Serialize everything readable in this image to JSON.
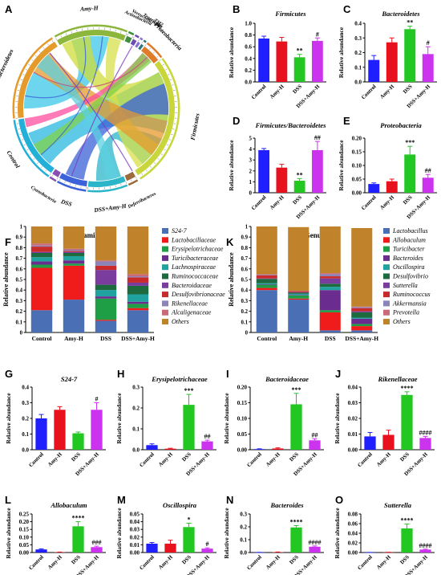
{
  "colors": {
    "Control": "#1f1fff",
    "Amy-H": "#e8121f",
    "DSS": "#22c722",
    "DSS+Amy-H": "#cc33ee"
  },
  "chord": {
    "letter": "A",
    "segments": [
      {
        "label": "Amy-H",
        "color": "#8db63c"
      },
      {
        "label": "Actinobacteria",
        "color": "#3f8c3f"
      },
      {
        "label": "Verrucomicrobia",
        "color": "#6a4fb0"
      },
      {
        "label": "Tenericutes",
        "color": "#8a6fd8"
      },
      {
        "label": "TM7",
        "color": "#2a7a7a"
      },
      {
        "label": "Proteobacteria",
        "color": "#e07b2a"
      },
      {
        "label": "Firmicutes",
        "color": "#c8d63c"
      },
      {
        "label": "Deferribacteres",
        "color": "#9c6b3c"
      },
      {
        "label": "DSS+Amy-H",
        "color": "#2bb5c9"
      },
      {
        "label": "DSS",
        "color": "#3b62d8"
      },
      {
        "label": "Cyanobacteria",
        "color": "#8a4fb3"
      },
      {
        "label": "Control",
        "color": "#22b0d8"
      },
      {
        "label": "Bacteroidetes",
        "color": "#e59a2c"
      }
    ]
  },
  "chart_data": [
    {
      "type": "bar",
      "letter": "B",
      "title": "Firmicutes",
      "ylabel": "Relative abundance",
      "categories": [
        "Control",
        "Amy-H",
        "DSS",
        "DSS+Amy-H"
      ],
      "values": [
        0.74,
        0.69,
        0.42,
        0.7
      ],
      "errors": [
        0.04,
        0.07,
        0.05,
        0.05
      ],
      "sig": [
        "",
        "",
        "**",
        "#"
      ],
      "ylim": [
        0,
        1.0
      ],
      "yticks": [
        "0.0",
        "0.2",
        "0.4",
        "0.6",
        "0.8",
        "1.0"
      ]
    },
    {
      "type": "bar",
      "letter": "C",
      "title": "Bacteroidetes",
      "ylabel": "Relative abundance",
      "categories": [
        "Control",
        "Amy-H",
        "DSS",
        "DSS+Amy-H"
      ],
      "values": [
        0.15,
        0.27,
        0.36,
        0.19
      ],
      "errors": [
        0.03,
        0.03,
        0.02,
        0.05
      ],
      "sig": [
        "",
        "",
        "**",
        "#"
      ],
      "ylim": [
        0,
        0.4
      ],
      "yticks": [
        "0.0",
        "0.1",
        "0.2",
        "0.3",
        "0.4"
      ]
    },
    {
      "type": "bar",
      "letter": "D",
      "title": "Firmicutes/Bacteroidetes",
      "ylabel": "Relative abundance",
      "categories": [
        "Control",
        "Amy-H",
        "DSS",
        "DSS+Amy-H"
      ],
      "values": [
        3.9,
        2.3,
        1.1,
        3.9
      ],
      "errors": [
        0.15,
        0.3,
        0.2,
        0.8
      ],
      "sig": [
        "",
        "",
        "**",
        "##"
      ],
      "ylim": [
        0,
        5
      ],
      "yticks": [
        "0",
        "1",
        "2",
        "3",
        "4",
        "5"
      ]
    },
    {
      "type": "bar",
      "letter": "E",
      "title": "Proteobacteria",
      "ylabel": "Relative abundance",
      "categories": [
        "Control",
        "Amy-H",
        "DSS",
        "DSS+Amy-H"
      ],
      "values": [
        0.032,
        0.042,
        0.14,
        0.055
      ],
      "errors": [
        0.004,
        0.008,
        0.03,
        0.012
      ],
      "sig": [
        "",
        "",
        "***",
        "##"
      ],
      "ylim": [
        0,
        0.2
      ],
      "yticks": [
        "0.00",
        "0.05",
        "0.10",
        "0.15",
        "0.20"
      ]
    },
    {
      "type": "stacked-bar",
      "letter": "F",
      "title": "Family",
      "ylabel": "Relative abundance",
      "categories": [
        "Control",
        "Amy-H",
        "DSS",
        "DSS+Amy-H"
      ],
      "ylim": [
        0,
        1
      ],
      "yticks": [
        "0",
        "0.1",
        "0.2",
        "0.3",
        "0.4",
        "0.5",
        "0.6",
        "0.7",
        "0.8",
        "0.9",
        "1"
      ],
      "series": [
        {
          "name": "S24-7",
          "color": "#4a6fb5",
          "values": [
            0.21,
            0.31,
            0.11,
            0.21
          ]
        },
        {
          "name": "Lactobacillaceae",
          "color": "#f01c1c",
          "values": [
            0.4,
            0.32,
            0.01,
            0.02
          ]
        },
        {
          "name": "Erysipelotrichaceae",
          "color": "#1e9e45",
          "values": [
            0.03,
            0.02,
            0.2,
            0.04
          ]
        },
        {
          "name": "Turicibacteraceae",
          "color": "#6a2c8e",
          "values": [
            0.03,
            0.03,
            0.02,
            0.02
          ]
        },
        {
          "name": "Lachnospiraceae",
          "color": "#1fa2a0",
          "values": [
            0.04,
            0.04,
            0.06,
            0.07
          ]
        },
        {
          "name": "Ruminococcaceae",
          "color": "#1e6a3f",
          "values": [
            0.04,
            0.03,
            0.05,
            0.08
          ]
        },
        {
          "name": "Bacteroidaceae",
          "color": "#7a3d9e",
          "values": [
            0.01,
            0.01,
            0.14,
            0.03
          ]
        },
        {
          "name": "Desulfovibrionaceae",
          "color": "#c92a2a",
          "values": [
            0.05,
            0.01,
            0.04,
            0.05
          ]
        },
        {
          "name": "Rikenellaceae",
          "color": "#8a84b8",
          "values": [
            0.01,
            0.01,
            0.04,
            0.01
          ]
        },
        {
          "name": "Alcaligenaceae",
          "color": "#c86a78",
          "values": [
            0.02,
            0.01,
            0.01,
            0.02
          ]
        },
        {
          "name": "Others",
          "color": "#c0822a",
          "values": [
            0.16,
            0.21,
            0.32,
            0.45
          ]
        }
      ]
    },
    {
      "type": "stacked-bar",
      "letter": "K",
      "title": "Genus",
      "ylabel": "Relative abundance",
      "categories": [
        "Control",
        "Amy-H",
        "DSS",
        "DSS+Amy-H"
      ],
      "ylim": [
        0,
        1
      ],
      "yticks": [
        "0",
        "0.1",
        "0.2",
        "0.3",
        "0.4",
        "0.5",
        "0.6",
        "0.7",
        "0.8",
        "0.9",
        "1"
      ],
      "series": [
        {
          "name": "Lactobacillus",
          "color": "#4a6fb5",
          "values": [
            0.4,
            0.31,
            0.02,
            0.02
          ]
        },
        {
          "name": "Allobaculum",
          "color": "#f01c1c",
          "values": [
            0.02,
            0.01,
            0.17,
            0.04
          ]
        },
        {
          "name": "Turicibacter",
          "color": "#1e9e45",
          "values": [
            0.03,
            0.03,
            0.02,
            0.02
          ]
        },
        {
          "name": "Bacteroides",
          "color": "#6a2c8e",
          "values": [
            0.005,
            0.005,
            0.19,
            0.05
          ]
        },
        {
          "name": "Oscillospira",
          "color": "#1fa2a0",
          "values": [
            0.01,
            0.01,
            0.03,
            0.01
          ]
        },
        {
          "name": "Desulfovibrio",
          "color": "#1e6a3f",
          "values": [
            0.04,
            0.01,
            0.03,
            0.05
          ]
        },
        {
          "name": "Sutterella",
          "color": "#7a3d9e",
          "values": [
            0.005,
            0.005,
            0.05,
            0.01
          ]
        },
        {
          "name": "Ruminococcus",
          "color": "#c92a2a",
          "values": [
            0.03,
            0.01,
            0.02,
            0.03
          ]
        },
        {
          "name": "Akkermansia",
          "color": "#8a84b8",
          "values": [
            0.005,
            0.002,
            0.02,
            0.01
          ]
        },
        {
          "name": "Prevotella",
          "color": "#c86a78",
          "values": [
            0.005,
            0.002,
            0.01,
            0.005
          ]
        },
        {
          "name": "Others",
          "color": "#c0822a",
          "values": [
            0.45,
            0.6,
            0.44,
            0.74
          ]
        }
      ]
    },
    {
      "type": "bar",
      "letter": "G",
      "title": "S24-7",
      "ylabel": "Relative abundance",
      "categories": [
        "Control",
        "Amy-H",
        "DSS",
        "DSS+Amy-H"
      ],
      "values": [
        0.2,
        0.255,
        0.105,
        0.255
      ],
      "errors": [
        0.025,
        0.02,
        0.008,
        0.045
      ],
      "sig": [
        "",
        "",
        "",
        "#"
      ],
      "ylim": [
        0,
        0.4
      ],
      "yticks": [
        "0.0",
        "0.1",
        "0.2",
        "0.3",
        "0.4"
      ]
    },
    {
      "type": "bar",
      "letter": "H",
      "title": "Erysipelotrichaceae",
      "ylabel": "Relative abundance",
      "categories": [
        "Control",
        "Amy-H",
        "DSS",
        "DSS+Amy-H"
      ],
      "values": [
        0.022,
        0.005,
        0.215,
        0.04
      ],
      "errors": [
        0.006,
        0.002,
        0.05,
        0.006
      ],
      "sig": [
        "",
        "",
        "***",
        "##"
      ],
      "ylim": [
        0,
        0.3
      ],
      "yticks": [
        "0.0",
        "0.1",
        "0.2",
        "0.3"
      ]
    },
    {
      "type": "bar",
      "letter": "I",
      "title": "Bacteroidaceae",
      "ylabel": "Relative abundance",
      "categories": [
        "Control",
        "Amy-H",
        "DSS",
        "DSS+Amy-H"
      ],
      "values": [
        0.002,
        0.004,
        0.145,
        0.03
      ],
      "errors": [
        0.001,
        0.002,
        0.035,
        0.005
      ],
      "sig": [
        "",
        "",
        "***",
        "##"
      ],
      "ylim": [
        0,
        0.2
      ],
      "yticks": [
        "0.00",
        "0.05",
        "0.10",
        "0.15",
        "0.20"
      ]
    },
    {
      "type": "bar",
      "letter": "J",
      "title": "Rikenellaceae",
      "ylabel": "Relative abundance",
      "categories": [
        "Control",
        "Amy-H",
        "DSS",
        "DSS+Amy-H"
      ],
      "values": [
        0.0085,
        0.0095,
        0.035,
        0.0075
      ],
      "errors": [
        0.0025,
        0.003,
        0.002,
        0.001
      ],
      "sig": [
        "",
        "",
        "****",
        "####"
      ],
      "ylim": [
        0,
        0.04
      ],
      "yticks": [
        "0.00",
        "0.01",
        "0.02",
        "0.03",
        "0.04"
      ]
    },
    {
      "type": "bar",
      "letter": "L",
      "title": "Allobaculum",
      "ylabel": "Relative abundance",
      "categories": [
        "Control",
        "Amy-H",
        "DSS",
        "DSS+Amy-H"
      ],
      "values": [
        0.02,
        0.002,
        0.17,
        0.035
      ],
      "errors": [
        0.004,
        0.001,
        0.03,
        0.006
      ],
      "sig": [
        "",
        "",
        "****",
        "###"
      ],
      "ylim": [
        0,
        0.25
      ],
      "yticks": [
        "0.00",
        "0.05",
        "0.10",
        "0.15",
        "0.20",
        "0.25"
      ]
    },
    {
      "type": "bar",
      "letter": "M",
      "title": "Oscillospira",
      "ylabel": "Relative abundance",
      "categories": [
        "Control",
        "Amy-H",
        "DSS",
        "DSS+Amy-H"
      ],
      "values": [
        0.0115,
        0.0115,
        0.033,
        0.005
      ],
      "errors": [
        0.0015,
        0.0045,
        0.005,
        0.001
      ],
      "sig": [
        "",
        "",
        "*",
        "#"
      ],
      "ylim": [
        0,
        0.05
      ],
      "yticks": [
        "0.00",
        "0.01",
        "0.02",
        "0.03",
        "0.04",
        "0.05"
      ]
    },
    {
      "type": "bar",
      "letter": "N",
      "title": "Bacteroides",
      "ylabel": "Relative abundance",
      "categories": [
        "Control",
        "Amy-H",
        "DSS",
        "DSS+Amy-H"
      ],
      "values": [
        0.001,
        0.003,
        0.195,
        0.045
      ],
      "errors": [
        0.0005,
        0.001,
        0.015,
        0.006
      ],
      "sig": [
        "",
        "",
        "****",
        "####"
      ],
      "ylim": [
        0,
        0.3
      ],
      "yticks": [
        "0.0",
        "0.1",
        "0.2",
        "0.3"
      ]
    },
    {
      "type": "bar",
      "letter": "O",
      "title": "Sutterella",
      "ylabel": "Relative abundance",
      "categories": [
        "Control",
        "Amy-H",
        "DSS",
        "DSS+Amy-H"
      ],
      "values": [
        0.0002,
        0.0004,
        0.05,
        0.006
      ],
      "errors": [
        0.0001,
        0.0002,
        0.009,
        0.001
      ],
      "sig": [
        "",
        "",
        "****",
        "####"
      ],
      "ylim": [
        0,
        0.08
      ],
      "yticks": [
        "0.00",
        "0.02",
        "0.04",
        "0.06",
        "0.08"
      ]
    }
  ]
}
